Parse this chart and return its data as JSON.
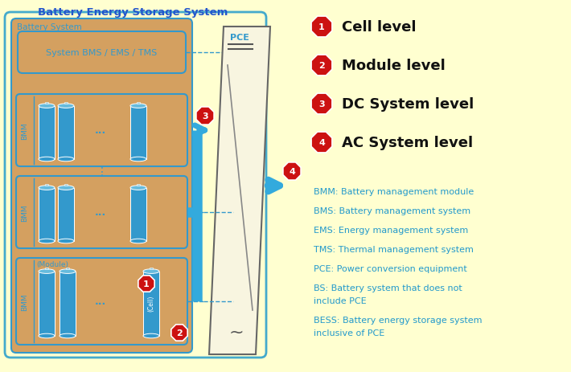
{
  "bg_color": "#ffffd0",
  "bess_border_color": "#44aacc",
  "bess_fill": "#d4a060",
  "bess_title": "Battery Energy Storage System",
  "bess_title_color": "#2255cc",
  "battery_system_label": "Battery System",
  "bmm_color": "#3399cc",
  "bms_box_label": "System BMS / EMS / TMS",
  "arrow_color": "#33aadd",
  "pce_fill": "#f8f5e0",
  "pce_border_color": "#555555",
  "pce_label": "PCE",
  "legend_items": [
    {
      "num": "1",
      "label": "Cell level"
    },
    {
      "num": "2",
      "label": "Module level"
    },
    {
      "num": "3",
      "label": "DC System level"
    },
    {
      "num": "4",
      "label": "AC System level"
    }
  ],
  "abbrev_items": [
    "BMM: Battery management module",
    "BMS: Battery management system",
    "EMS: Energy management system",
    "TMS: Thermal management system",
    "PCE: Power conversion equipment",
    "BS: Battery system that does not\ninclude PCE",
    "BESS: Battery energy storage system\ninclusive of PCE"
  ],
  "abbrev_color": "#2299cc",
  "red_badge_color": "#cc1111"
}
